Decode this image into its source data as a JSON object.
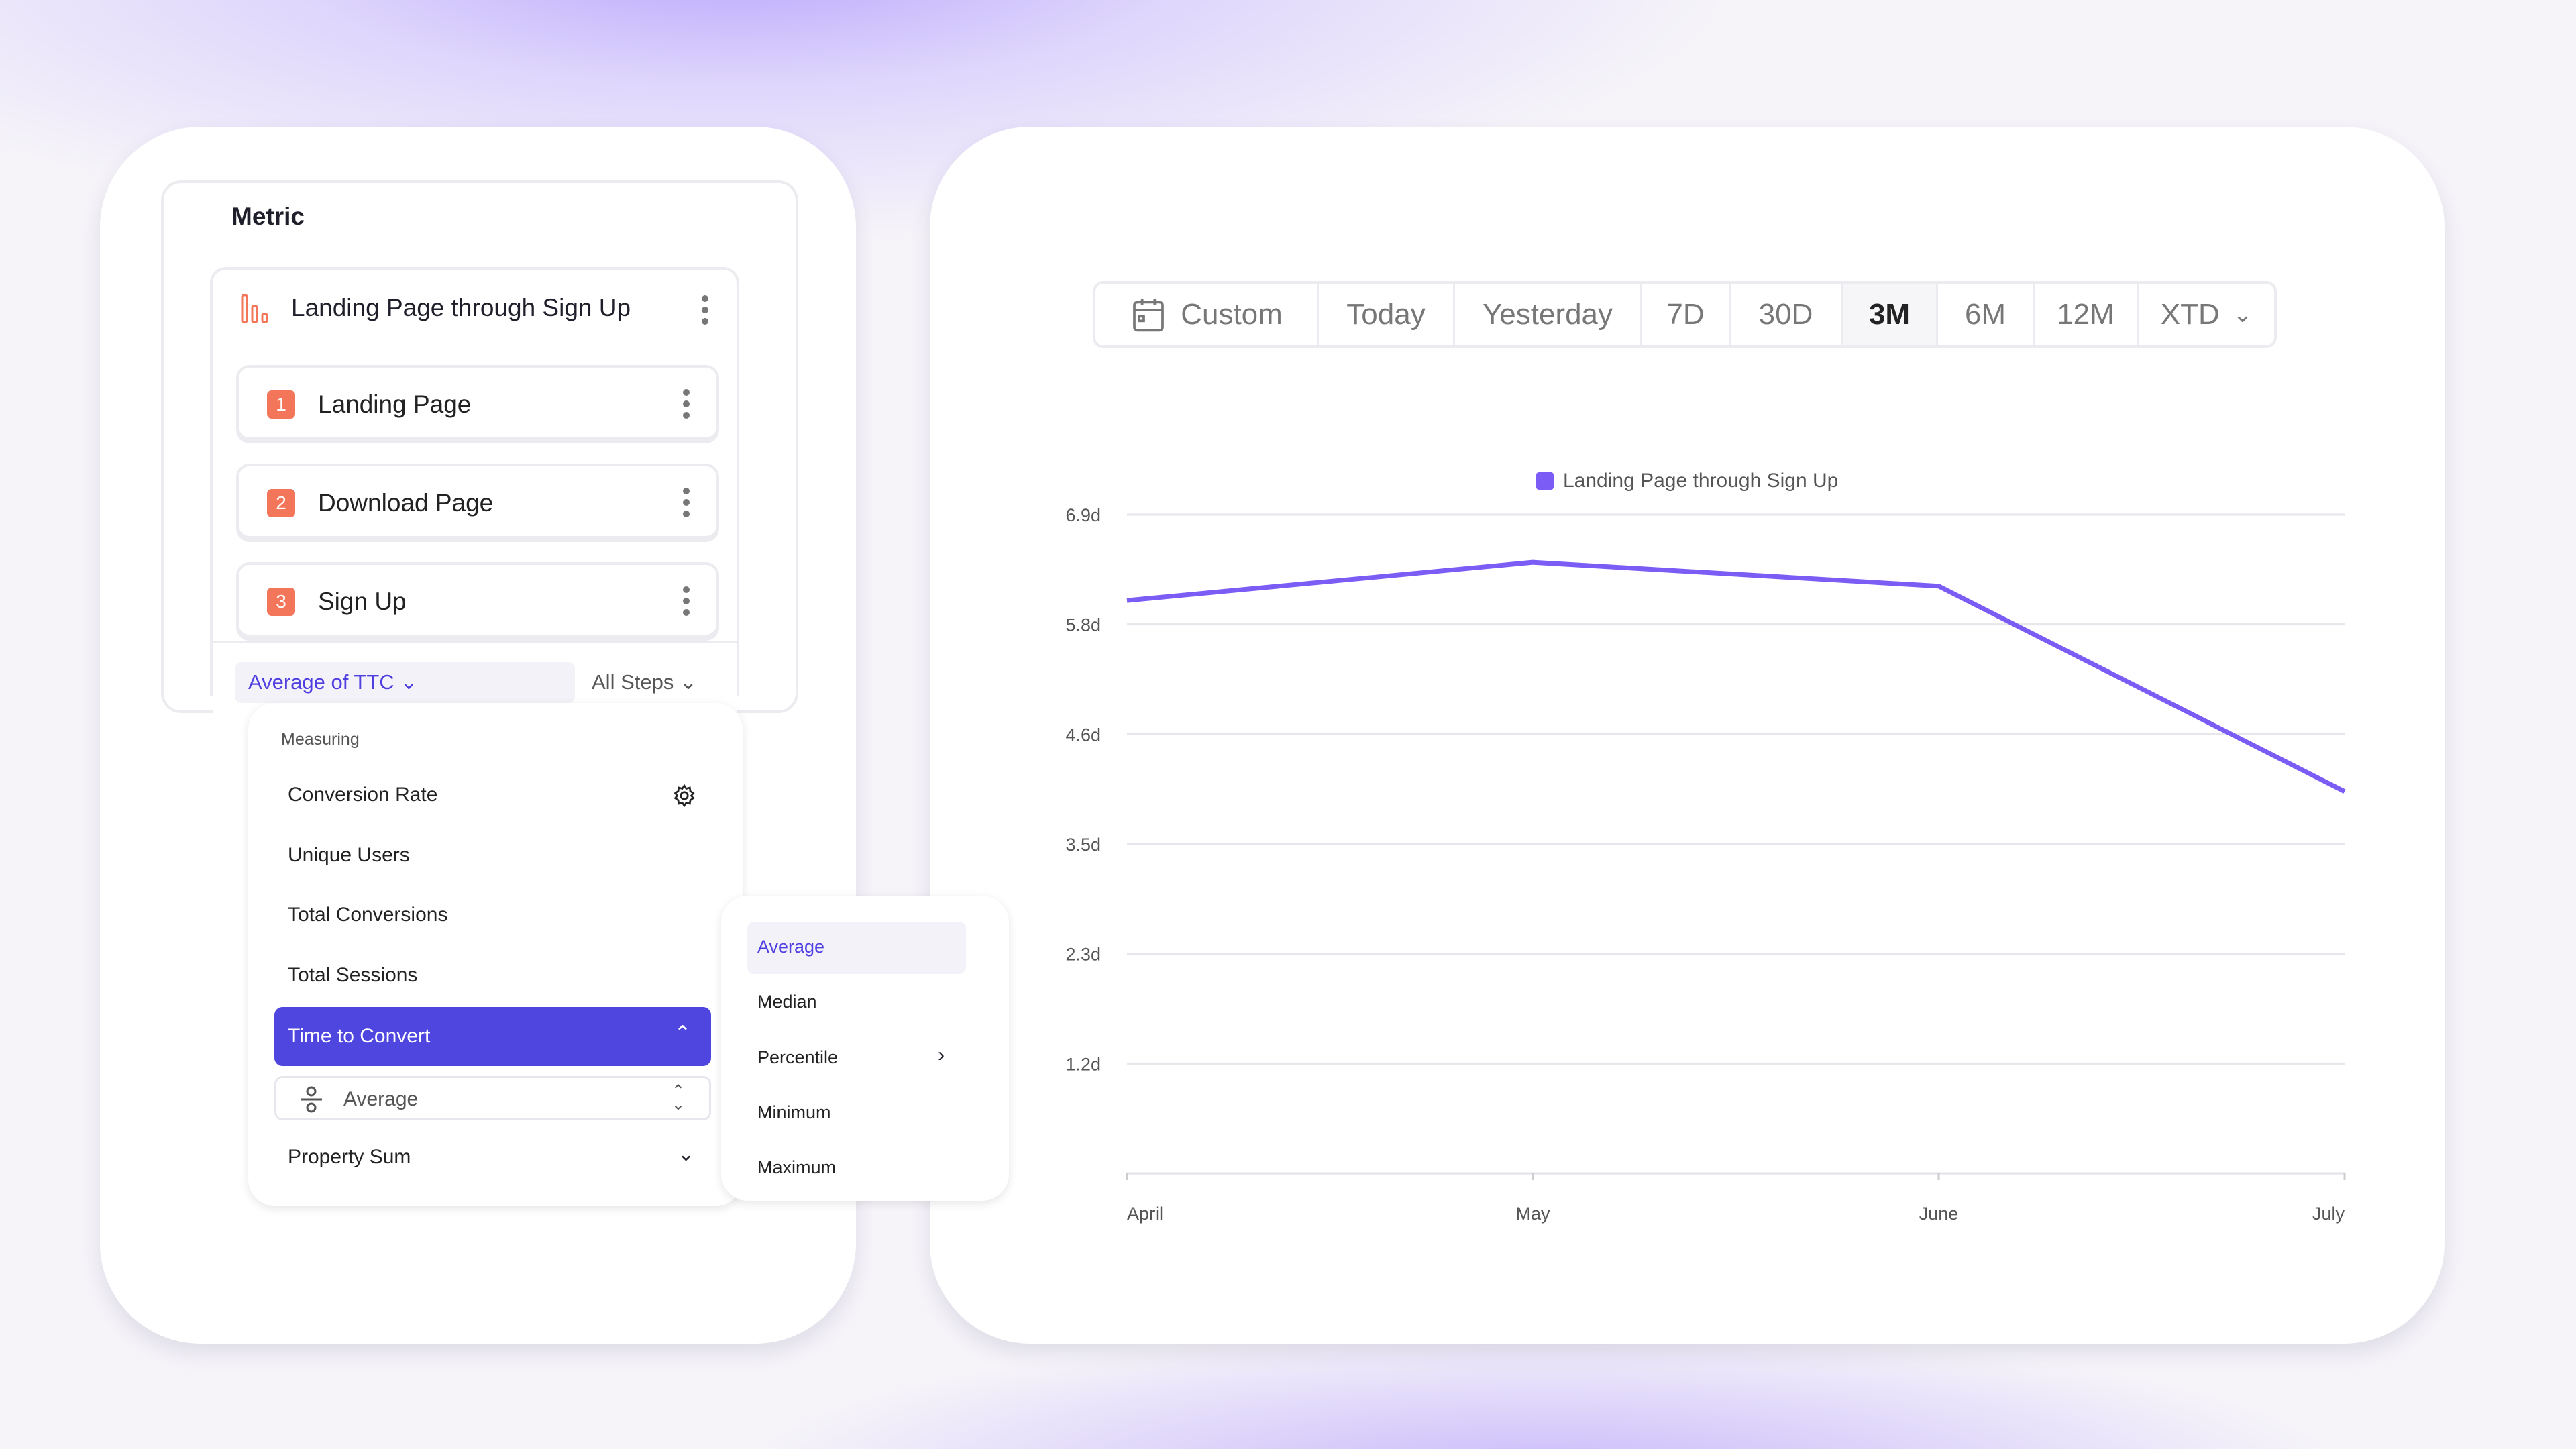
{
  "metric": {
    "title": "Metric",
    "funnel_name": "Landing Page through Sign Up",
    "steps": [
      {
        "num": "1",
        "label": "Landing Page"
      },
      {
        "num": "2",
        "label": "Download Page"
      },
      {
        "num": "3",
        "label": "Sign Up"
      }
    ],
    "measure_select": "Average of TTC",
    "steps_select": "All Steps"
  },
  "dropdown": {
    "section": "Measuring",
    "items": [
      "Conversion Rate",
      "Unique Users",
      "Total Conversions",
      "Total Sessions"
    ],
    "selected": "Time to Convert",
    "sub_select": "Average",
    "last_item": "Property Sum"
  },
  "submenu": {
    "items": [
      "Average",
      "Median",
      "Percentile",
      "Minimum",
      "Maximum"
    ],
    "selected": "Average"
  },
  "datebar": {
    "items": [
      "Custom",
      "Today",
      "Yesterday",
      "7D",
      "30D",
      "3M",
      "6M",
      "12M",
      "XTD"
    ],
    "active": "3M"
  },
  "colors": {
    "accent": "#4f46e0",
    "series": "#7b5cf5",
    "step_badge": "#f4765a"
  },
  "chart_data": {
    "type": "line",
    "x": [
      "April",
      "May",
      "June",
      "July"
    ],
    "series": [
      {
        "name": "Landing Page through Sign Up",
        "values": [
          6.0,
          6.4,
          6.15,
          4.0
        ]
      }
    ],
    "yticks": [
      "1.2d",
      "2.3d",
      "3.5d",
      "4.6d",
      "5.8d",
      "6.9d"
    ],
    "ytick_values": [
      1.15,
      2.3,
      3.45,
      4.6,
      5.75,
      6.9
    ],
    "ylim": [
      0,
      6.9
    ],
    "grid": true,
    "legend": "top-center"
  }
}
